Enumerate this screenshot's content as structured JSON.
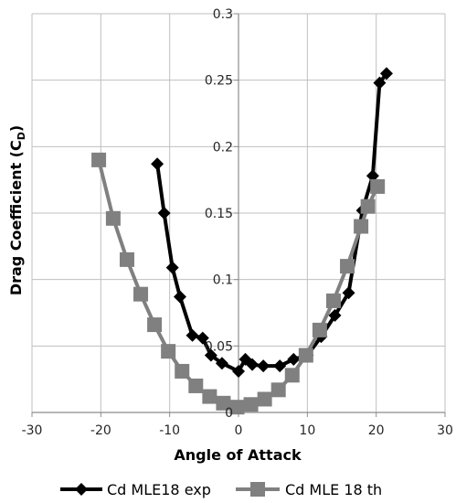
{
  "chart_data": {
    "type": "line",
    "xlabel": "Angle of Attack",
    "ylabel_main": "Drag Coefficient (C",
    "ylabel_sub": "D",
    "ylabel_close": ")",
    "xlim": [
      -30,
      30
    ],
    "ylim": [
      0,
      0.3
    ],
    "x_ticks": [
      -30,
      -20,
      -10,
      0,
      10,
      20,
      30
    ],
    "y_ticks": [
      0,
      0.05,
      0.1,
      0.15,
      0.2,
      0.25,
      0.3
    ],
    "x_tick_labels": [
      "-30",
      "-20",
      "-10",
      "0",
      "10",
      "20",
      "30"
    ],
    "y_tick_labels": [
      "0",
      "0.05",
      "0.1",
      "0.15",
      "0.2",
      "0.25",
      "0.3"
    ],
    "grid": true,
    "legend_position": "bottom",
    "series": [
      {
        "name": "Cd MLE18 exp",
        "color": "#000000",
        "marker": "diamond",
        "x": [
          -11.8,
          -10.8,
          -9.6,
          -8.5,
          -6.7,
          -5.2,
          -4,
          -2.4,
          0,
          1,
          2,
          3.6,
          6,
          8,
          10,
          12,
          14,
          16,
          18,
          19.5,
          20.5,
          21.5
        ],
        "y": [
          0.187,
          0.15,
          0.109,
          0.087,
          0.058,
          0.056,
          0.043,
          0.037,
          0.031,
          0.04,
          0.036,
          0.035,
          0.035,
          0.04,
          0.043,
          0.057,
          0.073,
          0.09,
          0.152,
          0.178,
          0.248,
          0.255
        ]
      },
      {
        "name": "Cd MLE 18 th",
        "color": "#808080",
        "marker": "square",
        "x": [
          -20.3,
          -18.2,
          -16.2,
          -14.2,
          -12.2,
          -10.2,
          -8.2,
          -6.2,
          -4.2,
          -2.2,
          -0.2,
          1.8,
          3.8,
          5.8,
          7.8,
          9.8,
          11.8,
          13.8,
          15.8,
          17.8,
          18.8,
          20.2
        ],
        "y": [
          0.19,
          0.146,
          0.115,
          0.089,
          0.066,
          0.046,
          0.031,
          0.02,
          0.012,
          0.007,
          0.004,
          0.006,
          0.01,
          0.017,
          0.028,
          0.043,
          0.062,
          0.084,
          0.11,
          0.14,
          0.155,
          0.17
        ]
      }
    ]
  }
}
